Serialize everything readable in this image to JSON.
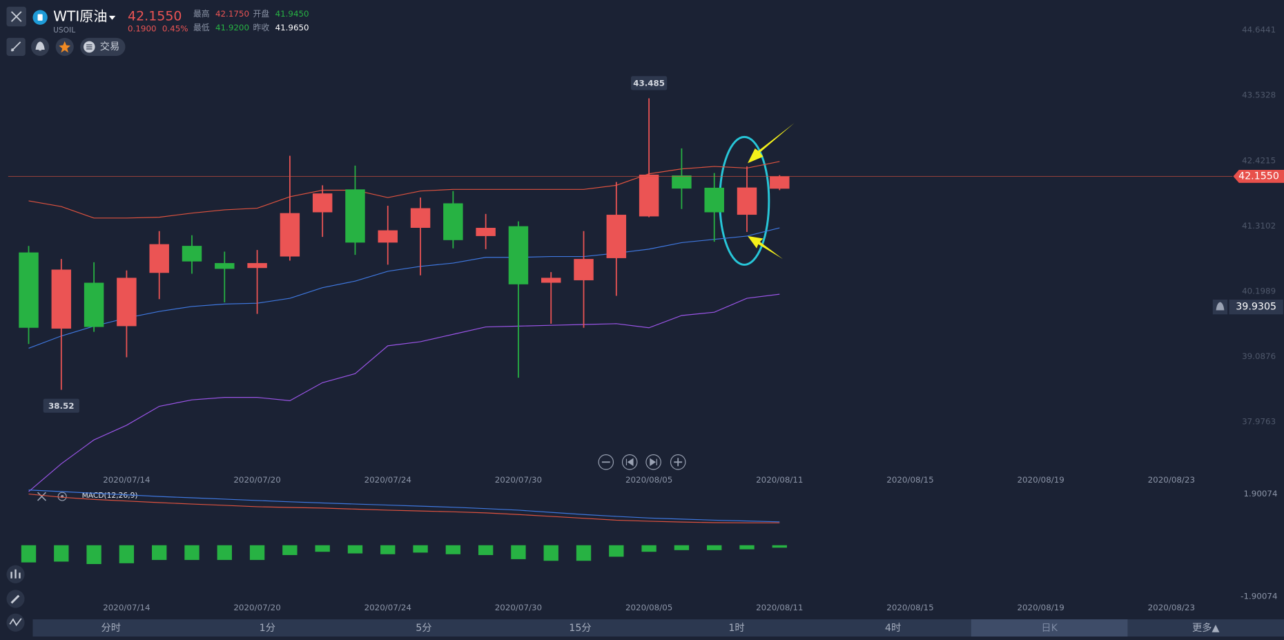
{
  "header": {
    "symbol": "WTI原油",
    "code": "USOIL",
    "price": "42.1550",
    "change": "0.1900",
    "change_pct": "0.45%",
    "high_label": "最高",
    "high": "42.1750",
    "open_label": "开盘",
    "open": "41.9450",
    "low_label": "最低",
    "low": "41.9200",
    "prev_close_label": "昨收",
    "prev_close": "41.9650"
  },
  "toolbar": {
    "trade": "交易"
  },
  "timeframes": {
    "items": [
      "分时",
      "1分",
      "5分",
      "15分",
      "1时",
      "4时",
      "日K",
      "更多▲"
    ],
    "selected": 6
  },
  "chart_data": [
    {
      "type": "candlestick",
      "categories": [
        null,
        null,
        null,
        "2020/07/14",
        null,
        null,
        null,
        "2020/07/20",
        null,
        null,
        null,
        "2020/07/24",
        null,
        null,
        null,
        "2020/07/30",
        null,
        null,
        null,
        "2020/08/05",
        null,
        null,
        null,
        "2020/08/11",
        null,
        null,
        null,
        "2020/08/15",
        null,
        null,
        null,
        "2020/08/19",
        null,
        null,
        null,
        "2020/08/23"
      ],
      "open": [
        40.859,
        39.562,
        40.343,
        39.604,
        40.511,
        40.971,
        40.678,
        40.594,
        40.79,
        41.543,
        41.933,
        41.027,
        41.278,
        41.696,
        41.138,
        41.306,
        40.343,
        40.385,
        40.762,
        41.473,
        42.17,
        41.961,
        41.501,
        41.945,
        null,
        null,
        null,
        null,
        null,
        null,
        null,
        null,
        null,
        null,
        null,
        null
      ],
      "high": [
        40.97,
        40.748,
        40.692,
        40.553,
        41.222,
        41.152,
        40.873,
        40.901,
        42.505,
        42.003,
        42.338,
        41.654,
        41.794,
        41.905,
        41.515,
        41.389,
        40.525,
        41.222,
        42.059,
        43.485,
        42.631,
        42.212,
        42.324,
        42.175,
        null,
        null,
        null,
        null,
        null,
        null,
        null,
        null,
        null,
        null,
        null,
        null
      ],
      "low": [
        39.3,
        38.52,
        39.507,
        39.074,
        40.064,
        40.497,
        40.009,
        39.813,
        40.72,
        41.124,
        40.818,
        40.65,
        40.469,
        40.929,
        40.915,
        38.725,
        39.646,
        39.576,
        40.12,
        41.459,
        41.599,
        41.041,
        41.208,
        41.92,
        null,
        null,
        null,
        null,
        null,
        null,
        null,
        null,
        null,
        null,
        null,
        null
      ],
      "close": [
        39.576,
        40.567,
        39.59,
        40.427,
        41.0,
        40.706,
        40.58,
        40.678,
        41.529,
        41.864,
        41.027,
        41.236,
        41.613,
        41.069,
        41.278,
        40.316,
        40.427,
        40.748,
        41.501,
        42.184,
        41.947,
        41.543,
        41.965,
        42.155,
        null,
        null,
        null,
        null,
        null,
        null,
        null,
        null,
        null,
        null,
        null,
        null
      ],
      "up_color": "#eb5454",
      "down_color": "#27b243",
      "lines": [
        {
          "color": "#e0533f",
          "values": [
            41.738,
            41.64,
            41.445,
            41.445,
            41.459,
            41.529,
            41.585,
            41.613,
            41.808,
            41.919,
            41.919,
            41.794,
            41.905,
            41.933,
            41.933,
            41.933,
            41.933,
            41.933,
            42.003,
            42.198,
            42.282,
            42.324,
            42.296,
            42.408,
            null,
            null,
            null,
            null,
            null,
            null,
            null,
            null,
            null,
            null,
            null,
            null
          ]
        },
        {
          "color": "#3f78e0",
          "values": [
            39.228,
            39.437,
            39.604,
            39.744,
            39.855,
            39.939,
            39.981,
            39.995,
            40.078,
            40.26,
            40.371,
            40.539,
            40.622,
            40.678,
            40.776,
            40.776,
            40.79,
            40.79,
            40.846,
            40.915,
            41.027,
            41.083,
            41.138,
            41.278,
            null,
            null,
            null,
            null,
            null,
            null,
            null,
            null,
            null,
            null,
            null,
            null
          ]
        },
        {
          "color": "#9b55e8",
          "values": [
            36.787,
            37.261,
            37.666,
            37.917,
            38.238,
            38.349,
            38.391,
            38.391,
            38.335,
            38.642,
            38.795,
            39.269,
            39.339,
            39.465,
            39.59,
            39.604,
            39.618,
            39.632,
            39.646,
            39.576,
            39.785,
            39.841,
            40.078,
            40.148,
            null,
            null,
            null,
            null,
            null,
            null,
            null,
            null,
            null,
            null,
            null,
            null
          ]
        }
      ],
      "ylim": [
        37.1353,
        45.155
      ],
      "yticks": [
        44.6441,
        43.5328,
        42.4215,
        41.3102,
        40.1989,
        39.0876,
        37.9763
      ],
      "alert": {
        "value": 39.9305
      }
    },
    {
      "type": "macd",
      "title": "MACD(12,26,9)",
      "histogram": {
        "color": "#27b243",
        "values": [
          -0.638,
          -0.608,
          -0.699,
          -0.669,
          -0.547,
          -0.547,
          -0.547,
          -0.547,
          -0.365,
          -0.243,
          -0.304,
          -0.334,
          -0.274,
          -0.334,
          -0.365,
          -0.517,
          -0.578,
          -0.578,
          -0.426,
          -0.243,
          -0.182,
          -0.182,
          -0.152,
          -0.091
        ]
      },
      "lines": [
        {
          "color": "#3f78e0",
          "values": [
            2.05,
            1.99,
            1.93,
            1.87,
            1.81,
            1.76,
            1.71,
            1.66,
            1.61,
            1.57,
            1.53,
            1.49,
            1.45,
            1.41,
            1.36,
            1.3,
            1.22,
            1.14,
            1.07,
            1.01,
            0.97,
            0.93,
            0.9,
            0.87
          ]
        },
        {
          "color": "#e0533f",
          "values": [
            1.9,
            1.78,
            1.7,
            1.64,
            1.58,
            1.53,
            1.48,
            1.43,
            1.4,
            1.38,
            1.34,
            1.3,
            1.27,
            1.24,
            1.2,
            1.14,
            1.07,
            1.0,
            0.93,
            0.89,
            0.86,
            0.84,
            0.83,
            0.83
          ]
        }
      ],
      "ylim": [
        -2.112,
        2.143
      ],
      "yticks": [
        1.90074,
        -1.90074
      ]
    }
  ]
}
